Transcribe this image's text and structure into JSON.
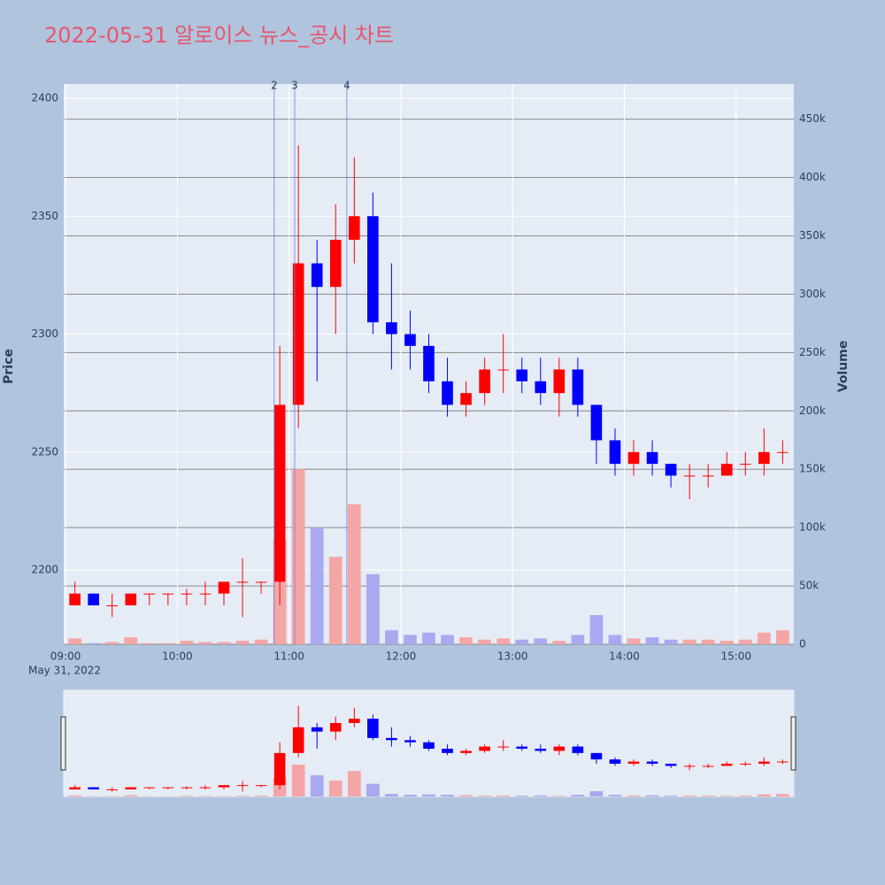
{
  "chart_data": {
    "type": "candlestick",
    "title": "2022-05-31 알로이스 뉴스_공시 차트",
    "y_title": "Price",
    "y2_title": "Volume",
    "date_label": "May 31, 2022",
    "up_color": "#ff0000",
    "down_color": "#0000ff",
    "volume_up_color": "#f4a6a6",
    "volume_down_color": "#a9a9f0",
    "x": [
      "09:00",
      "09:10",
      "09:20",
      "09:30",
      "09:40",
      "09:50",
      "10:00",
      "10:10",
      "10:20",
      "10:30",
      "10:40",
      "10:50",
      "11:00",
      "11:10",
      "11:20",
      "11:30",
      "11:40",
      "11:50",
      "12:00",
      "12:10",
      "12:20",
      "12:30",
      "12:40",
      "12:50",
      "13:00",
      "13:10",
      "13:20",
      "13:30",
      "13:40",
      "13:50",
      "14:00",
      "14:10",
      "14:20",
      "14:30",
      "14:40",
      "14:50",
      "15:00",
      "15:10",
      "15:20"
    ],
    "open": [
      2185,
      2190,
      2185,
      2185,
      2190,
      2190,
      2190,
      2190,
      2190,
      2195,
      2195,
      2195,
      2270,
      2330,
      2320,
      2340,
      2350,
      2305,
      2300,
      2295,
      2280,
      2270,
      2275,
      2285,
      2285,
      2280,
      2275,
      2285,
      2270,
      2255,
      2245,
      2250,
      2245,
      2240,
      2240,
      2240,
      2245,
      2245,
      2250
    ],
    "high": [
      2195,
      2190,
      2190,
      2190,
      2190,
      2190,
      2192,
      2195,
      2195,
      2205,
      2195,
      2295,
      2380,
      2340,
      2355,
      2375,
      2360,
      2330,
      2310,
      2300,
      2290,
      2280,
      2290,
      2300,
      2290,
      2290,
      2290,
      2290,
      2270,
      2260,
      2255,
      2255,
      2245,
      2245,
      2245,
      2250,
      2250,
      2260,
      2255
    ],
    "low": [
      2185,
      2185,
      2180,
      2185,
      2185,
      2185,
      2185,
      2185,
      2185,
      2180,
      2190,
      2185,
      2260,
      2280,
      2300,
      2330,
      2300,
      2285,
      2285,
      2275,
      2265,
      2265,
      2270,
      2275,
      2275,
      2270,
      2265,
      2265,
      2245,
      2240,
      2240,
      2240,
      2235,
      2230,
      2235,
      2240,
      2240,
      2240,
      2245
    ],
    "close": [
      2190,
      2185,
      2185,
      2190,
      2190,
      2190,
      2190,
      2190,
      2195,
      2195,
      2195,
      2270,
      2330,
      2320,
      2340,
      2350,
      2305,
      2300,
      2295,
      2280,
      2270,
      2275,
      2285,
      2285,
      2280,
      2275,
      2285,
      2270,
      2255,
      2245,
      2250,
      2245,
      2240,
      2240,
      2240,
      2245,
      2245,
      2250,
      2250
    ],
    "volume": [
      5000,
      1000,
      2000,
      6000,
      1000,
      1000,
      3000,
      2000,
      2000,
      3000,
      4000,
      90000,
      150000,
      100000,
      75000,
      120000,
      60000,
      12000,
      8000,
      10000,
      8000,
      6000,
      4000,
      5000,
      4000,
      5000,
      3000,
      8000,
      25000,
      8000,
      5000,
      6000,
      4000,
      4000,
      4000,
      3000,
      4000,
      10000,
      12000
    ],
    "annotations": [
      {
        "x": "10:52",
        "label": "2"
      },
      {
        "x": "11:03",
        "label": "3"
      },
      {
        "x": "11:31",
        "label": "4"
      }
    ],
    "xlim": [
      "08:59",
      "15:31"
    ],
    "xticks": [
      "09:00",
      "10:00",
      "11:00",
      "12:00",
      "13:00",
      "14:00",
      "15:00"
    ],
    "ylim": [
      2168.5,
      2406
    ],
    "yticks": [
      2200,
      2250,
      2300,
      2350,
      2400
    ],
    "y2lim": [
      0,
      480000
    ],
    "y2ticks": [
      0,
      {
        "value": 50000,
        "label": "50k"
      },
      {
        "value": 100000,
        "label": "100k"
      },
      {
        "value": 150000,
        "label": "150k"
      },
      {
        "value": 200000,
        "label": "200k"
      },
      {
        "value": 250000,
        "label": "250k"
      },
      {
        "value": 300000,
        "label": "300k"
      },
      {
        "value": 350000,
        "label": "350k"
      },
      {
        "value": 400000,
        "label": "400k"
      },
      {
        "value": 450000,
        "label": "450k"
      }
    ],
    "grid": true,
    "rangeslider": true
  }
}
